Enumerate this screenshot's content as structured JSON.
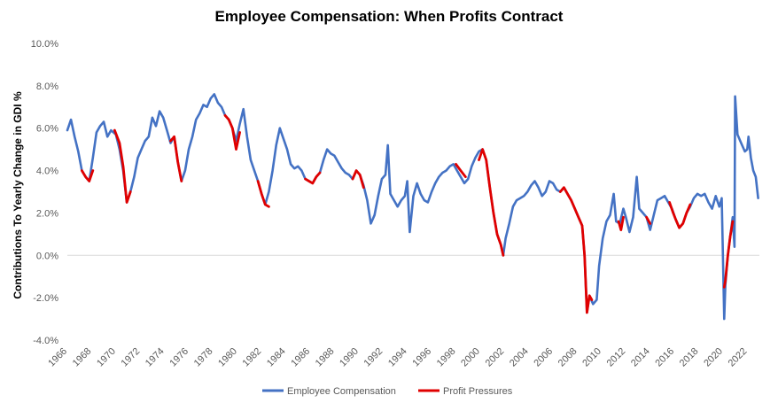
{
  "chart_data": {
    "type": "line",
    "title": "Employee Compensation: When Profits Contract",
    "xlabel": "",
    "ylabel": "Contributions To Yearly Change in GDI %",
    "ylim": [
      -4,
      10
    ],
    "y_ticks": [
      "-4.0%",
      "-2.0%",
      "0.0%",
      "2.0%",
      "4.0%",
      "6.0%",
      "8.0%",
      "10.0%"
    ],
    "x_ticks": [
      "1966",
      "1968",
      "1970",
      "1972",
      "1974",
      "1976",
      "1978",
      "1980",
      "1982",
      "1984",
      "1986",
      "1988",
      "1990",
      "1992",
      "1994",
      "1996",
      "1998",
      "2000",
      "2002",
      "2004",
      "2006",
      "2008",
      "2010",
      "2012",
      "2014",
      "2016",
      "2018",
      "2020",
      "2022"
    ],
    "xlim": [
      1966,
      2023
    ],
    "legend": {
      "position": "bottom"
    },
    "colors": {
      "employee": "#4472C4",
      "profit": "#E00000"
    },
    "series": [
      {
        "name": "Employee Compensation",
        "color": "#4472C4",
        "points": [
          [
            1966.0,
            5.9
          ],
          [
            1966.3,
            6.4
          ],
          [
            1966.6,
            5.6
          ],
          [
            1966.9,
            4.9
          ],
          [
            1967.2,
            4.0
          ],
          [
            1967.5,
            3.7
          ],
          [
            1967.8,
            3.5
          ],
          [
            1968.1,
            4.6
          ],
          [
            1968.4,
            5.8
          ],
          [
            1968.7,
            6.1
          ],
          [
            1969.0,
            6.3
          ],
          [
            1969.3,
            5.6
          ],
          [
            1969.6,
            5.9
          ],
          [
            1970.0,
            5.7
          ],
          [
            1970.3,
            5.0
          ],
          [
            1970.6,
            4.0
          ],
          [
            1970.9,
            2.5
          ],
          [
            1971.2,
            3.0
          ],
          [
            1971.5,
            3.7
          ],
          [
            1971.8,
            4.6
          ],
          [
            1972.1,
            5.0
          ],
          [
            1972.4,
            5.4
          ],
          [
            1972.7,
            5.6
          ],
          [
            1973.0,
            6.5
          ],
          [
            1973.3,
            6.1
          ],
          [
            1973.6,
            6.8
          ],
          [
            1973.9,
            6.5
          ],
          [
            1974.2,
            5.9
          ],
          [
            1974.5,
            5.3
          ],
          [
            1974.8,
            5.6
          ],
          [
            1975.1,
            4.4
          ],
          [
            1975.4,
            3.5
          ],
          [
            1975.7,
            4.0
          ],
          [
            1976.0,
            5.0
          ],
          [
            1976.3,
            5.6
          ],
          [
            1976.6,
            6.4
          ],
          [
            1976.9,
            6.7
          ],
          [
            1977.2,
            7.1
          ],
          [
            1977.5,
            7.0
          ],
          [
            1977.8,
            7.4
          ],
          [
            1978.1,
            7.6
          ],
          [
            1978.4,
            7.2
          ],
          [
            1978.7,
            7.0
          ],
          [
            1979.0,
            6.6
          ],
          [
            1979.3,
            6.4
          ],
          [
            1979.6,
            6.0
          ],
          [
            1979.9,
            5.4
          ],
          [
            1980.2,
            6.2
          ],
          [
            1980.5,
            6.9
          ],
          [
            1980.8,
            5.6
          ],
          [
            1981.1,
            4.5
          ],
          [
            1981.4,
            4.0
          ],
          [
            1981.7,
            3.5
          ],
          [
            1982.0,
            2.9
          ],
          [
            1982.3,
            2.4
          ],
          [
            1982.6,
            3.0
          ],
          [
            1982.9,
            4.0
          ],
          [
            1983.2,
            5.2
          ],
          [
            1983.5,
            6.0
          ],
          [
            1983.8,
            5.5
          ],
          [
            1984.1,
            5.0
          ],
          [
            1984.4,
            4.3
          ],
          [
            1984.7,
            4.1
          ],
          [
            1985.0,
            4.2
          ],
          [
            1985.3,
            4.0
          ],
          [
            1985.6,
            3.6
          ],
          [
            1985.9,
            3.5
          ],
          [
            1986.2,
            3.4
          ],
          [
            1986.5,
            3.7
          ],
          [
            1986.8,
            3.9
          ],
          [
            1987.1,
            4.5
          ],
          [
            1987.4,
            5.0
          ],
          [
            1987.7,
            4.8
          ],
          [
            1988.0,
            4.7
          ],
          [
            1988.3,
            4.4
          ],
          [
            1988.6,
            4.1
          ],
          [
            1988.9,
            3.9
          ],
          [
            1989.2,
            3.8
          ],
          [
            1989.5,
            3.6
          ],
          [
            1989.8,
            4.0
          ],
          [
            1990.1,
            3.8
          ],
          [
            1990.4,
            3.3
          ],
          [
            1990.7,
            2.6
          ],
          [
            1991.0,
            1.5
          ],
          [
            1991.3,
            1.9
          ],
          [
            1991.6,
            2.8
          ],
          [
            1991.9,
            3.6
          ],
          [
            1992.2,
            3.8
          ],
          [
            1992.4,
            5.2
          ],
          [
            1992.6,
            2.9
          ],
          [
            1992.9,
            2.6
          ],
          [
            1993.2,
            2.3
          ],
          [
            1993.5,
            2.6
          ],
          [
            1993.8,
            2.8
          ],
          [
            1994.0,
            3.5
          ],
          [
            1994.2,
            1.1
          ],
          [
            1994.5,
            2.8
          ],
          [
            1994.8,
            3.4
          ],
          [
            1995.1,
            2.9
          ],
          [
            1995.4,
            2.6
          ],
          [
            1995.7,
            2.5
          ],
          [
            1996.0,
            3.0
          ],
          [
            1996.3,
            3.4
          ],
          [
            1996.6,
            3.7
          ],
          [
            1996.9,
            3.9
          ],
          [
            1997.2,
            4.0
          ],
          [
            1997.5,
            4.2
          ],
          [
            1997.8,
            4.3
          ],
          [
            1998.1,
            4.0
          ],
          [
            1998.4,
            3.7
          ],
          [
            1998.7,
            3.4
          ],
          [
            1999.0,
            3.6
          ],
          [
            1999.3,
            4.2
          ],
          [
            1999.6,
            4.6
          ],
          [
            1999.9,
            4.9
          ],
          [
            2000.2,
            5.0
          ],
          [
            2000.5,
            4.5
          ],
          [
            2000.8,
            3.2
          ],
          [
            2001.1,
            2.0
          ],
          [
            2001.4,
            1.0
          ],
          [
            2001.7,
            0.5
          ],
          [
            2001.9,
            0.0
          ],
          [
            2002.1,
            0.8
          ],
          [
            2002.4,
            1.5
          ],
          [
            2002.7,
            2.3
          ],
          [
            2003.0,
            2.6
          ],
          [
            2003.3,
            2.7
          ],
          [
            2003.6,
            2.8
          ],
          [
            2003.9,
            3.0
          ],
          [
            2004.2,
            3.3
          ],
          [
            2004.5,
            3.5
          ],
          [
            2004.8,
            3.2
          ],
          [
            2005.1,
            2.8
          ],
          [
            2005.4,
            3.0
          ],
          [
            2005.7,
            3.5
          ],
          [
            2006.0,
            3.4
          ],
          [
            2006.3,
            3.1
          ],
          [
            2006.6,
            3.0
          ],
          [
            2006.9,
            3.2
          ],
          [
            2007.2,
            2.9
          ],
          [
            2007.5,
            2.6
          ],
          [
            2007.8,
            2.2
          ],
          [
            2008.1,
            1.8
          ],
          [
            2008.4,
            1.4
          ],
          [
            2008.6,
            0.0
          ],
          [
            2008.8,
            -2.7
          ],
          [
            2009.0,
            -1.9
          ],
          [
            2009.3,
            -2.3
          ],
          [
            2009.6,
            -2.1
          ],
          [
            2009.8,
            -0.5
          ],
          [
            2010.1,
            0.8
          ],
          [
            2010.4,
            1.6
          ],
          [
            2010.7,
            1.9
          ],
          [
            2011.0,
            2.9
          ],
          [
            2011.2,
            1.6
          ],
          [
            2011.5,
            1.5
          ],
          [
            2011.8,
            2.2
          ],
          [
            2012.0,
            1.8
          ],
          [
            2012.3,
            1.1
          ],
          [
            2012.6,
            1.8
          ],
          [
            2012.9,
            3.7
          ],
          [
            2013.1,
            2.2
          ],
          [
            2013.4,
            2.0
          ],
          [
            2013.7,
            1.8
          ],
          [
            2014.0,
            1.2
          ],
          [
            2014.3,
            1.9
          ],
          [
            2014.6,
            2.6
          ],
          [
            2014.9,
            2.7
          ],
          [
            2015.2,
            2.8
          ],
          [
            2015.5,
            2.5
          ],
          [
            2015.8,
            2.2
          ],
          [
            2016.1,
            1.7
          ],
          [
            2016.4,
            1.3
          ],
          [
            2016.7,
            1.5
          ],
          [
            2017.0,
            2.0
          ],
          [
            2017.3,
            2.3
          ],
          [
            2017.6,
            2.7
          ],
          [
            2017.9,
            2.9
          ],
          [
            2018.2,
            2.8
          ],
          [
            2018.5,
            2.9
          ],
          [
            2018.8,
            2.5
          ],
          [
            2019.1,
            2.2
          ],
          [
            2019.4,
            2.8
          ],
          [
            2019.7,
            2.3
          ],
          [
            2019.9,
            2.7
          ],
          [
            2020.1,
            -3.0
          ],
          [
            2020.2,
            -1.4
          ],
          [
            2020.4,
            0.0
          ],
          [
            2020.6,
            0.9
          ],
          [
            2020.8,
            1.8
          ],
          [
            2020.95,
            0.4
          ],
          [
            2021.0,
            7.5
          ],
          [
            2021.2,
            5.7
          ],
          [
            2021.5,
            5.3
          ],
          [
            2021.8,
            4.9
          ],
          [
            2022.0,
            5.0
          ],
          [
            2022.1,
            5.6
          ],
          [
            2022.3,
            4.6
          ],
          [
            2022.5,
            4.0
          ],
          [
            2022.7,
            3.7
          ],
          [
            2022.9,
            2.7
          ]
        ]
      },
      {
        "name": "Profit Pressures",
        "color": "#E00000",
        "segments": [
          [
            [
              1967.2,
              4.0
            ],
            [
              1967.5,
              3.7
            ],
            [
              1967.8,
              3.5
            ],
            [
              1968.1,
              4.0
            ]
          ],
          [
            [
              1969.9,
              5.9
            ],
            [
              1970.3,
              5.3
            ],
            [
              1970.6,
              4.2
            ],
            [
              1970.9,
              2.5
            ],
            [
              1971.2,
              3.0
            ]
          ],
          [
            [
              1974.5,
              5.4
            ],
            [
              1974.8,
              5.6
            ],
            [
              1975.1,
              4.4
            ],
            [
              1975.4,
              3.5
            ]
          ],
          [
            [
              1979.0,
              6.6
            ],
            [
              1979.3,
              6.4
            ],
            [
              1979.6,
              6.0
            ],
            [
              1979.9,
              5.0
            ],
            [
              1980.2,
              5.8
            ]
          ],
          [
            [
              1981.7,
              3.5
            ],
            [
              1982.0,
              2.9
            ],
            [
              1982.3,
              2.4
            ],
            [
              1982.6,
              2.3
            ]
          ],
          [
            [
              1985.6,
              3.6
            ],
            [
              1985.9,
              3.5
            ],
            [
              1986.2,
              3.4
            ],
            [
              1986.5,
              3.7
            ],
            [
              1986.8,
              3.9
            ]
          ],
          [
            [
              1989.5,
              3.6
            ],
            [
              1989.8,
              4.0
            ],
            [
              1990.1,
              3.8
            ],
            [
              1990.4,
              3.2
            ]
          ],
          [
            [
              1998.0,
              4.3
            ],
            [
              1998.4,
              4.0
            ],
            [
              1998.8,
              3.7
            ]
          ],
          [
            [
              1999.9,
              4.5
            ],
            [
              2000.2,
              5.0
            ],
            [
              2000.5,
              4.5
            ],
            [
              2000.8,
              3.2
            ],
            [
              2001.1,
              2.0
            ],
            [
              2001.4,
              1.0
            ],
            [
              2001.7,
              0.5
            ],
            [
              2001.9,
              0.0
            ]
          ],
          [
            [
              2006.6,
              3.0
            ],
            [
              2006.9,
              3.2
            ],
            [
              2007.2,
              2.9
            ],
            [
              2007.5,
              2.6
            ],
            [
              2007.8,
              2.2
            ],
            [
              2008.1,
              1.8
            ],
            [
              2008.4,
              1.4
            ],
            [
              2008.6,
              0.0
            ],
            [
              2008.8,
              -2.7
            ],
            [
              2009.0,
              -1.9
            ],
            [
              2009.2,
              -2.1
            ]
          ],
          [
            [
              2011.4,
              1.6
            ],
            [
              2011.6,
              1.2
            ],
            [
              2011.8,
              1.8
            ]
          ],
          [
            [
              2013.7,
              1.8
            ],
            [
              2014.0,
              1.5
            ]
          ],
          [
            [
              2015.6,
              2.5
            ],
            [
              2015.9,
              2.0
            ],
            [
              2016.1,
              1.7
            ],
            [
              2016.4,
              1.3
            ],
            [
              2016.7,
              1.5
            ],
            [
              2017.0,
              2.0
            ],
            [
              2017.3,
              2.4
            ]
          ],
          [
            [
              2020.1,
              -1.5
            ],
            [
              2020.2,
              -1.2
            ],
            [
              2020.4,
              0.0
            ],
            [
              2020.6,
              0.9
            ],
            [
              2020.8,
              1.6
            ]
          ]
        ]
      }
    ]
  }
}
